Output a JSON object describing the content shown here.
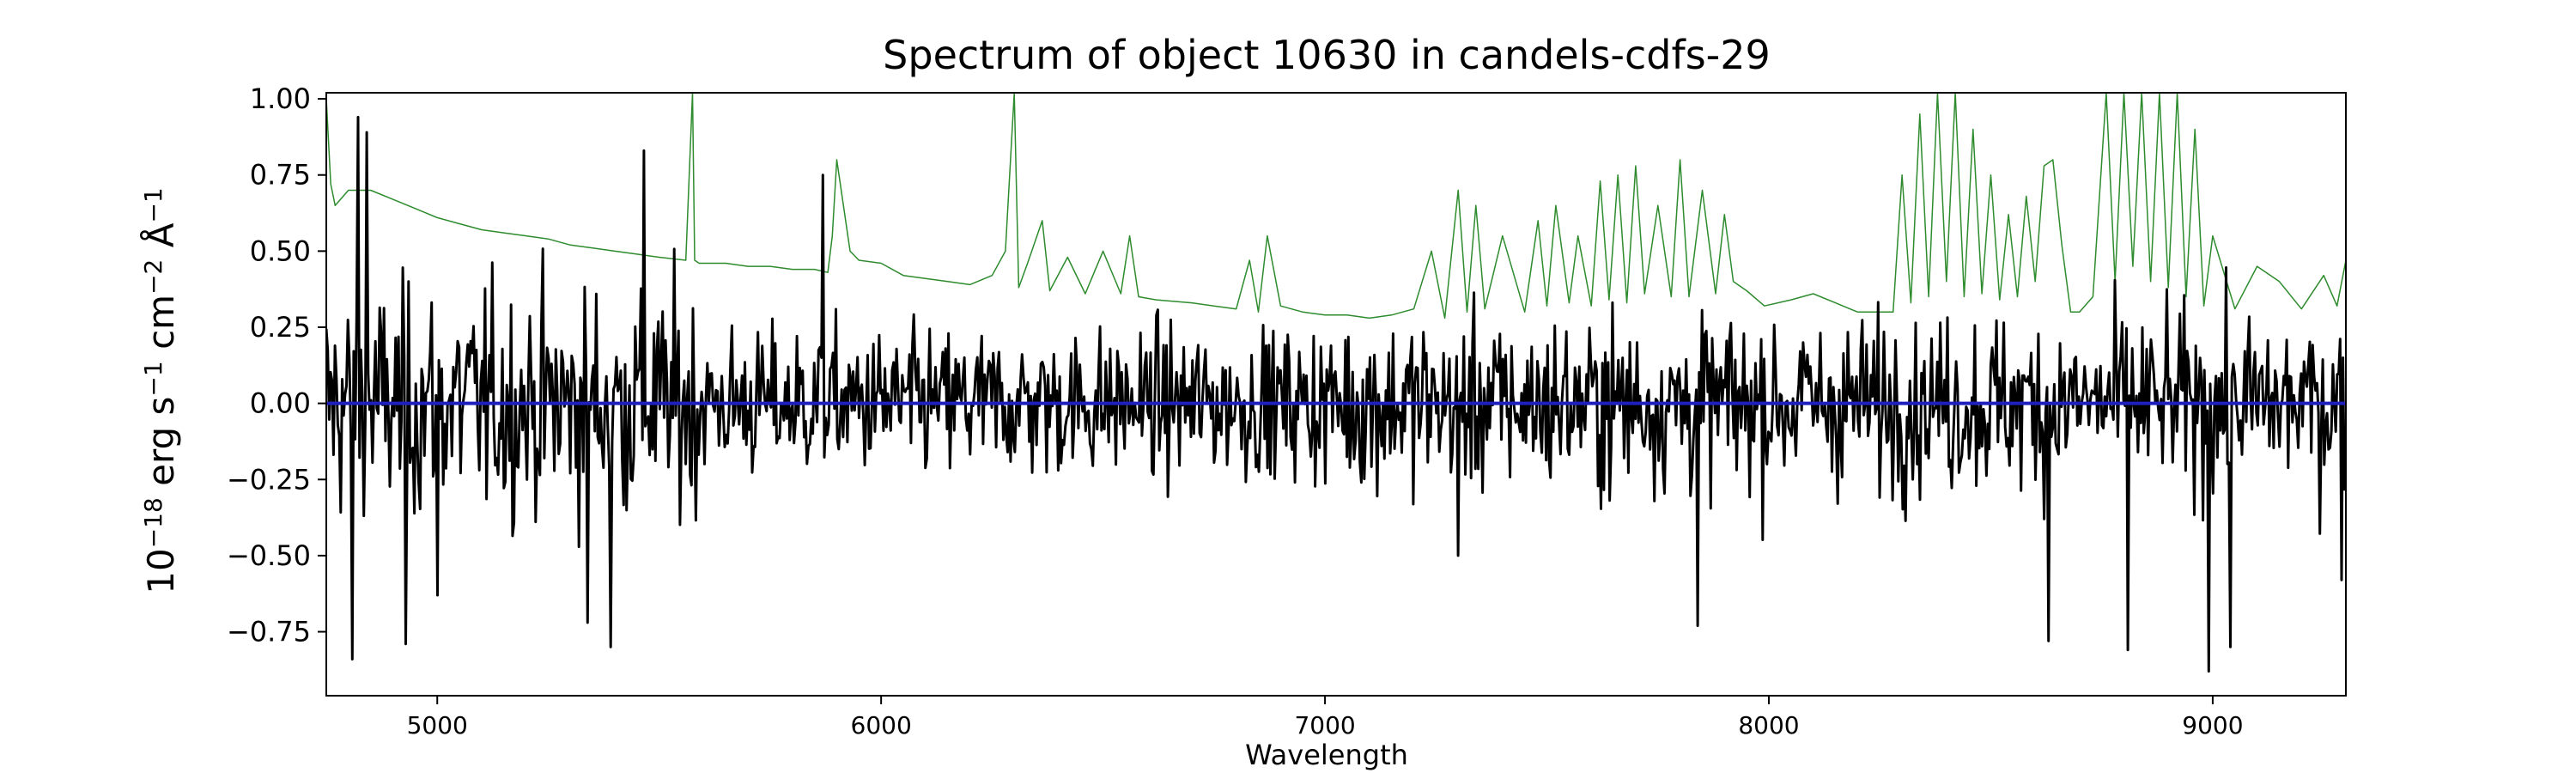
{
  "chart_data": {
    "type": "line",
    "title": "Spectrum of object 10630 in candels-cdfs-29",
    "xlabel": "Wavelength",
    "ylabel": {
      "base": "10",
      "exp": "−18",
      "rest_1": " erg s",
      "exp_1": "−1",
      "rest_2": " cm",
      "exp_2": "−2",
      "rest_3": " Å",
      "exp_3": "−1"
    },
    "xlim": [
      4750,
      9300
    ],
    "ylim": [
      -0.96,
      1.02
    ],
    "x_ticks": [
      5000,
      6000,
      7000,
      8000,
      9000
    ],
    "x_tick_labels": [
      "5000",
      "6000",
      "7000",
      "8000",
      "9000"
    ],
    "y_ticks": [
      -0.75,
      -0.5,
      -0.25,
      0.0,
      0.25,
      0.5,
      0.75,
      1.0
    ],
    "y_tick_labels": [
      "−0.75",
      "−0.50",
      "−0.25",
      "0.00",
      "0.25",
      "0.50",
      "0.75",
      "1.00"
    ],
    "grid": false,
    "series": [
      {
        "role": "sky-background",
        "color": "#2e8b2e",
        "x": [
          4750,
          4760,
          4770,
          4800,
          4850,
          4900,
          4950,
          5000,
          5050,
          5100,
          5150,
          5200,
          5250,
          5300,
          5350,
          5400,
          5450,
          5500,
          5560,
          5575,
          5580,
          5590,
          5650,
          5700,
          5750,
          5800,
          5850,
          5880,
          5890,
          5900,
          5930,
          5950,
          6000,
          6050,
          6100,
          6150,
          6200,
          6250,
          6280,
          6300,
          6310,
          6330,
          6363,
          6380,
          6420,
          6460,
          6500,
          6540,
          6560,
          6580,
          6620,
          6700,
          6750,
          6800,
          6830,
          6850,
          6870,
          6900,
          6950,
          7000,
          7050,
          7100,
          7150,
          7200,
          7240,
          7270,
          7300,
          7320,
          7340,
          7360,
          7400,
          7450,
          7480,
          7500,
          7520,
          7550,
          7570,
          7600,
          7620,
          7640,
          7660,
          7680,
          7700,
          7720,
          7750,
          7780,
          7800,
          7820,
          7850,
          7880,
          7900,
          7920,
          7950,
          7990,
          8050,
          8100,
          8150,
          8200,
          8250,
          8280,
          8300,
          8320,
          8340,
          8360,
          8380,
          8400,
          8420,
          8440,
          8460,
          8480,
          8500,
          8520,
          8540,
          8560,
          8580,
          8600,
          8620,
          8640,
          8660,
          8680,
          8700,
          8730,
          8760,
          8780,
          8800,
          8820,
          8840,
          8860,
          8880,
          8900,
          8920,
          8940,
          8960,
          8980,
          9000,
          9050,
          9100,
          9150,
          9200,
          9250,
          9280,
          9300
        ],
        "y": [
          1.0,
          0.72,
          0.65,
          0.7,
          0.7,
          0.67,
          0.64,
          0.61,
          0.59,
          0.57,
          0.56,
          0.55,
          0.54,
          0.52,
          0.51,
          0.5,
          0.49,
          0.48,
          0.47,
          1.02,
          0.47,
          0.46,
          0.46,
          0.45,
          0.45,
          0.44,
          0.44,
          0.43,
          0.55,
          0.8,
          0.5,
          0.47,
          0.46,
          0.42,
          0.41,
          0.4,
          0.39,
          0.42,
          0.5,
          1.02,
          0.38,
          0.46,
          0.6,
          0.37,
          0.48,
          0.36,
          0.5,
          0.36,
          0.55,
          0.35,
          0.34,
          0.33,
          0.32,
          0.31,
          0.47,
          0.3,
          0.55,
          0.32,
          0.3,
          0.29,
          0.29,
          0.28,
          0.29,
          0.31,
          0.5,
          0.28,
          0.7,
          0.3,
          0.65,
          0.31,
          0.55,
          0.3,
          0.6,
          0.32,
          0.65,
          0.33,
          0.55,
          0.32,
          0.73,
          0.34,
          0.75,
          0.33,
          0.78,
          0.36,
          0.65,
          0.35,
          0.8,
          0.35,
          0.7,
          0.36,
          0.62,
          0.4,
          0.37,
          0.32,
          0.34,
          0.36,
          0.33,
          0.3,
          0.3,
          0.3,
          0.75,
          0.33,
          0.95,
          0.35,
          1.02,
          0.4,
          1.02,
          0.35,
          0.9,
          0.36,
          0.75,
          0.34,
          0.62,
          0.35,
          0.68,
          0.4,
          0.78,
          0.8,
          0.52,
          0.3,
          0.3,
          0.35,
          1.02,
          0.4,
          1.02,
          0.45,
          1.02,
          0.4,
          1.02,
          0.38,
          1.02,
          0.35,
          0.9,
          0.32,
          0.55,
          0.31,
          0.45,
          0.4,
          0.31,
          0.42,
          0.32,
          0.47
        ],
        "stroke_width": 1.5
      },
      {
        "role": "flux",
        "color": "#000000",
        "x_start": 4750,
        "x_end": 9300,
        "n_points": 1400,
        "stroke_width": 3,
        "extremes": [
          {
            "x": 4810,
            "y": -0.84
          },
          {
            "x": 4820,
            "y": 0.94
          },
          {
            "x": 4840,
            "y": 0.89
          },
          {
            "x": 4930,
            "y": -0.79
          },
          {
            "x": 5000,
            "y": -0.63
          },
          {
            "x": 5340,
            "y": -0.72
          },
          {
            "x": 5390,
            "y": -0.8
          },
          {
            "x": 5465,
            "y": 0.83
          },
          {
            "x": 5870,
            "y": 0.75
          },
          {
            "x": 7300,
            "y": -0.5
          },
          {
            "x": 7840,
            "y": -0.73
          },
          {
            "x": 8630,
            "y": -0.78
          },
          {
            "x": 8810,
            "y": -0.81
          },
          {
            "x": 8990,
            "y": -0.88
          },
          {
            "x": 9040,
            "y": -0.8
          },
          {
            "x": 9290,
            "y": -0.58
          }
        ]
      },
      {
        "role": "model",
        "color": "#1f1fbf",
        "x": [
          4750,
          9300
        ],
        "y": [
          0.0,
          0.0
        ],
        "stroke_width": 4
      }
    ]
  }
}
